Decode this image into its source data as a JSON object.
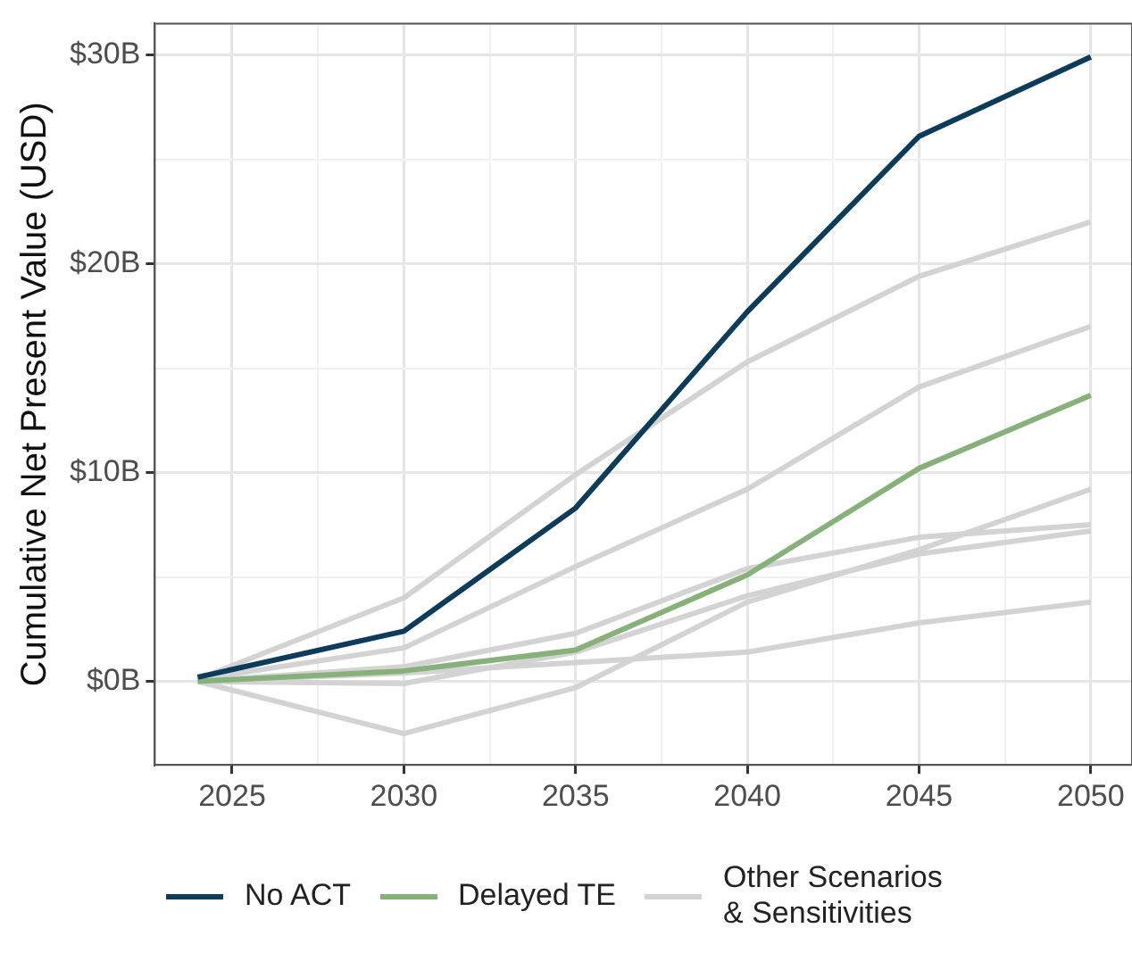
{
  "chart_data": {
    "type": "line",
    "ylabel": "Cumulative Net Present Value (USD)",
    "x": [
      2024,
      2030,
      2035,
      2040,
      2045,
      2050
    ],
    "xlim": [
      2022.75,
      2051.2
    ],
    "xticks": [
      2025,
      {
        "value": 2027.5,
        "label": null
      },
      2030,
      {
        "value": 2032.5,
        "label": null
      },
      2035,
      {
        "value": 2037.5,
        "label": null
      },
      2040,
      {
        "value": 2042.5,
        "label": null
      },
      2045,
      {
        "value": 2047.5,
        "label": null
      },
      2050
    ],
    "ylim": [
      -4,
      31.5
    ],
    "yticks": [
      {
        "value": 0,
        "label": "$0B"
      },
      {
        "value": 5,
        "label": null
      },
      {
        "value": 10,
        "label": "$10B"
      },
      {
        "value": 15,
        "label": null
      },
      {
        "value": 20,
        "label": "$20B"
      },
      {
        "value": 25,
        "label": null
      },
      {
        "value": 30,
        "label": "$30B"
      }
    ],
    "grid": true,
    "legend": "bottom",
    "marker": "none",
    "line_style": "solid",
    "series": [
      {
        "name": "No ACT",
        "color": "#0d3b5a",
        "values": [
          0.2,
          2.4,
          8.3,
          17.7,
          26.1,
          29.9
        ]
      },
      {
        "name": "Delayed TE",
        "color": "#86b27a",
        "values": [
          0,
          0.5,
          1.5,
          5.1,
          10.2,
          13.7
        ]
      },
      {
        "name": "Other Scenarios & Sensitivities",
        "color": "#d3d3d3",
        "values": [
          0.1,
          4.0,
          9.9,
          15.3,
          19.4,
          22.0
        ]
      },
      {
        "color": "#d3d3d3",
        "values": [
          0.1,
          1.6,
          5.5,
          9.2,
          14.1,
          17.0
        ]
      },
      {
        "color": "#d3d3d3",
        "values": [
          0,
          0.7,
          2.3,
          5.4,
          6.9,
          7.5
        ]
      },
      {
        "color": "#d3d3d3",
        "values": [
          0,
          -0.1,
          1.4,
          4.1,
          6.1,
          7.2
        ]
      },
      {
        "color": "#d3d3d3",
        "values": [
          0,
          -2.5,
          -0.3,
          3.8,
          6.3,
          9.2
        ]
      },
      {
        "color": "#d3d3d3",
        "values": [
          0,
          0.4,
          0.9,
          1.4,
          2.8,
          3.8
        ]
      }
    ]
  }
}
